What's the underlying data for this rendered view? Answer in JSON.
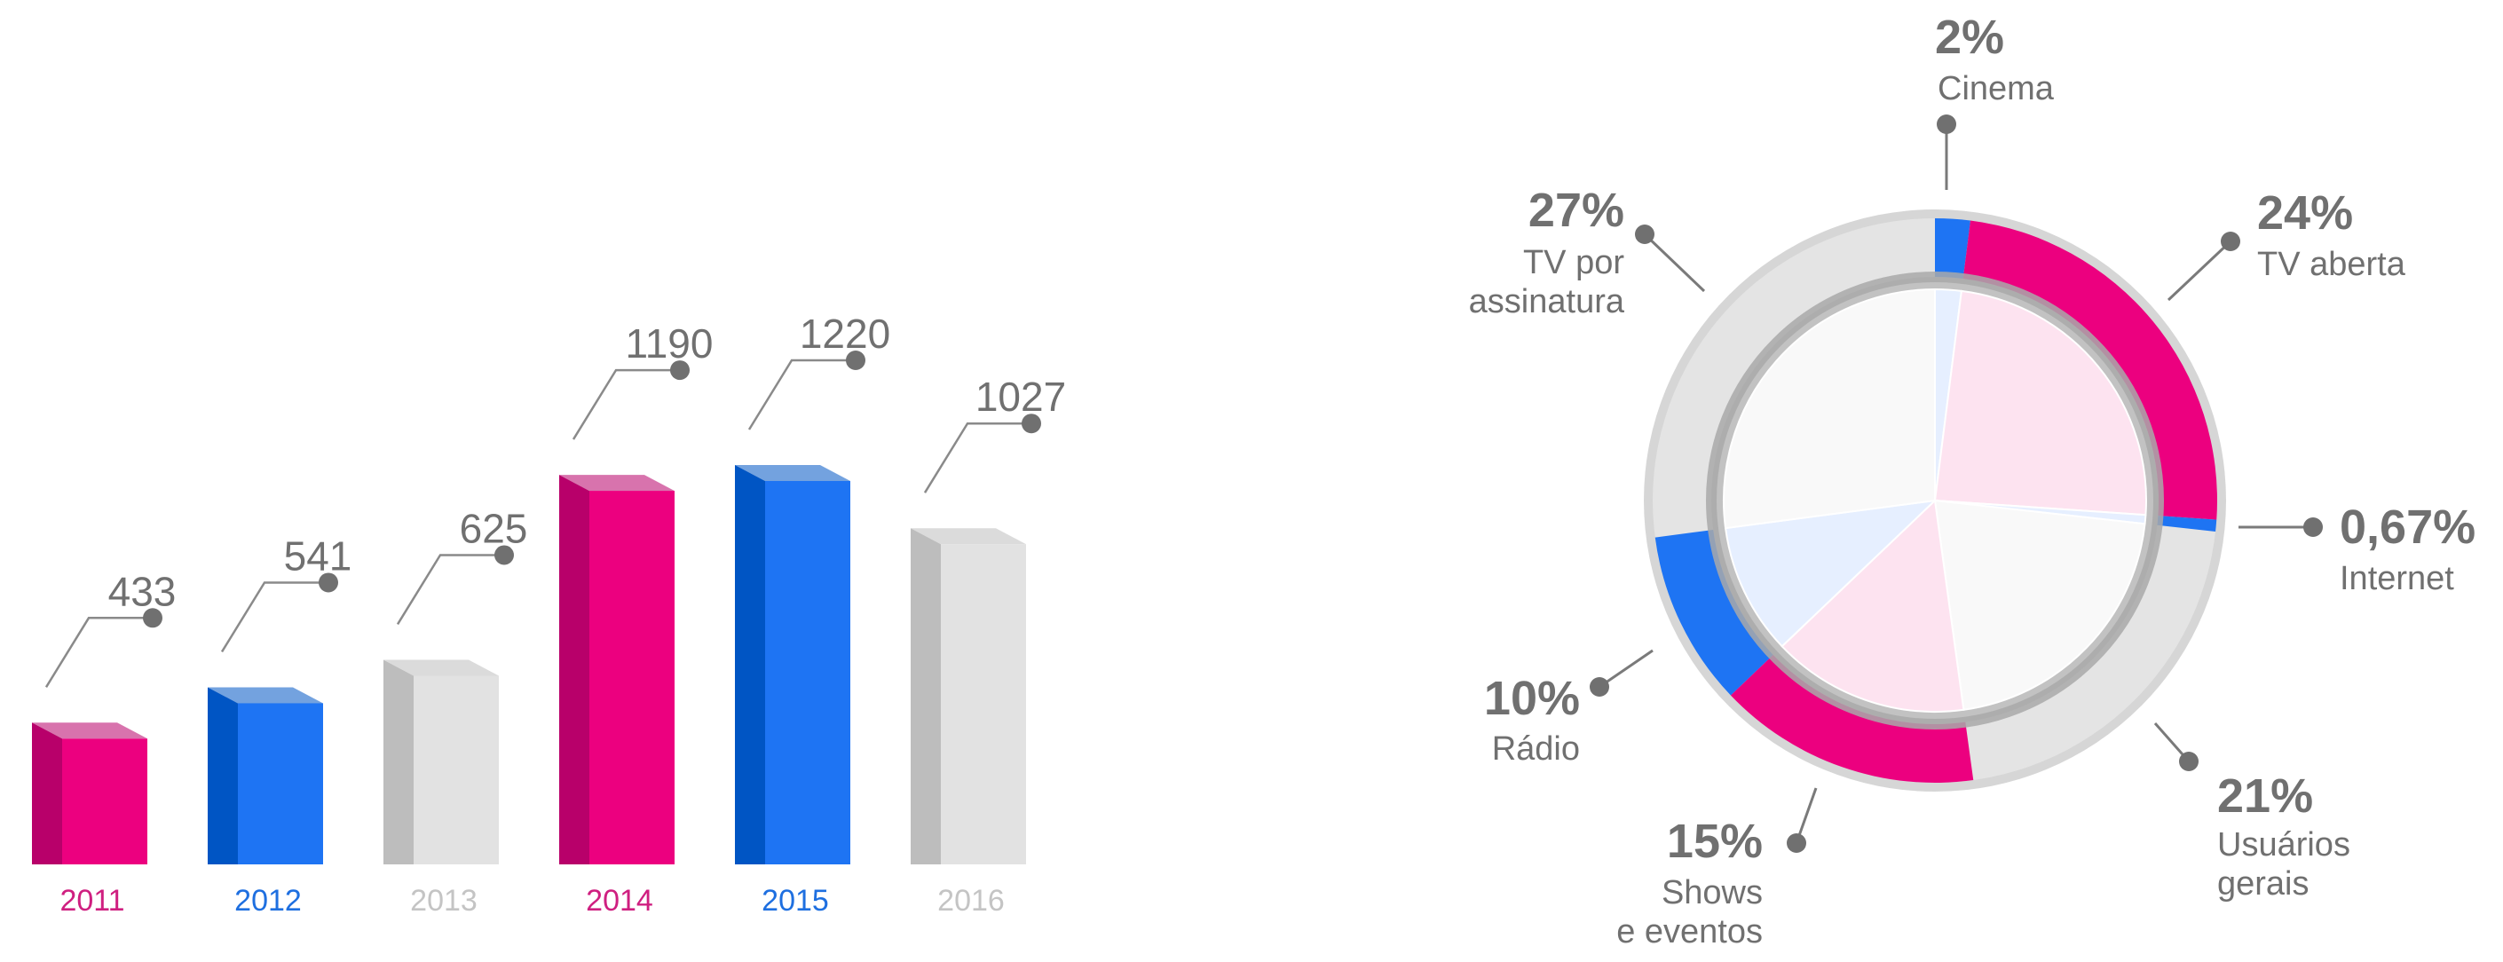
{
  "chart_data": [
    {
      "type": "bar",
      "categories": [
        "2011",
        "2012",
        "2013",
        "2014",
        "2015",
        "2016"
      ],
      "values": [
        433,
        541,
        625,
        1190,
        1220,
        1027
      ],
      "colors": [
        "#ec007f",
        "#1e74f3",
        "#e2e2e2",
        "#ec007f",
        "#1e74f3",
        "#e2e2e2"
      ],
      "side_colors": [
        "#b8006a",
        "#0055c4",
        "#bdbdbd",
        "#b8006a",
        "#0055c4",
        "#bdbdbd"
      ],
      "label_colors": [
        "#cf1f80",
        "#1e6fe0",
        "#c4c4c4",
        "#cf1f80",
        "#1e6fe0",
        "#c4c4c4"
      ],
      "title": "",
      "xlabel": "",
      "ylabel": ""
    },
    {
      "type": "pie",
      "slices": [
        {
          "label_line1": "Cinema",
          "label_line2": "",
          "pct_text": "2%",
          "value": 2,
          "color": "#1e74f3"
        },
        {
          "label_line1": "TV aberta",
          "label_line2": "",
          "pct_text": "24%",
          "value": 24,
          "color": "#ec007f"
        },
        {
          "label_line1": "Internet",
          "label_line2": "",
          "pct_text": "0,67%",
          "value": 0.67,
          "color": "#1e74f3"
        },
        {
          "label_line1": "Usuários",
          "label_line2": "gerais",
          "pct_text": "21%",
          "value": 21,
          "color": "#e2e2e2"
        },
        {
          "label_line1": "Shows",
          "label_line2": "e eventos",
          "pct_text": "15%",
          "value": 15,
          "color": "#ec007f"
        },
        {
          "label_line1": "Rádio",
          "label_line2": "",
          "pct_text": "10%",
          "value": 10,
          "color": "#1e74f3"
        },
        {
          "label_line1": "TV por",
          "label_line2": "assinatura",
          "pct_text": "27%",
          "value": 27,
          "color": "#e2e2e2"
        }
      ]
    }
  ]
}
